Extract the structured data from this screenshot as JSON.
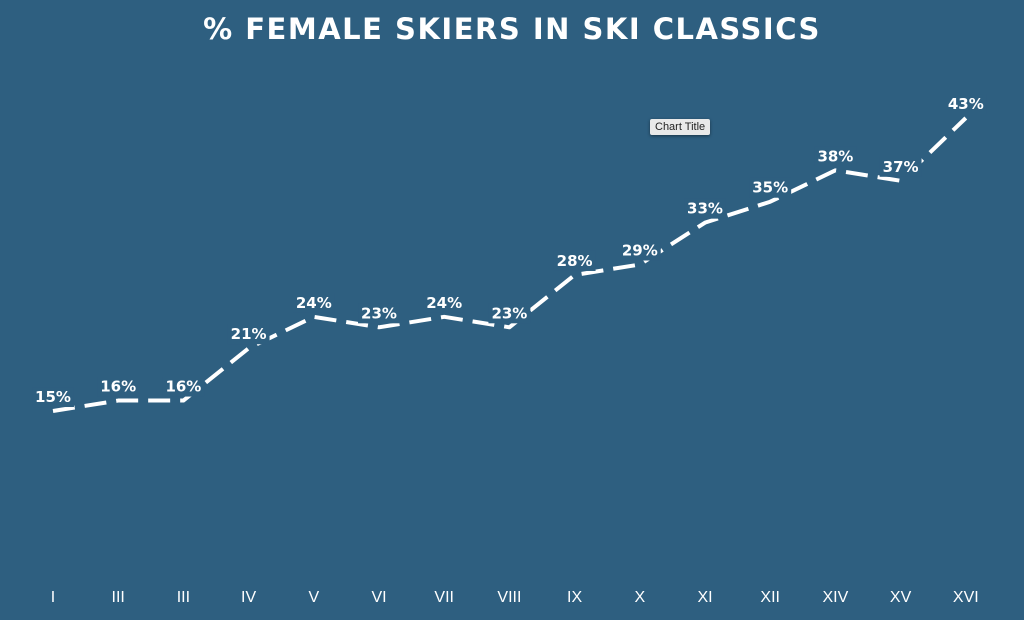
{
  "tooltip": {
    "text": "Chart Title"
  },
  "colors": {
    "background": "#2e5f80",
    "line": "#ffffff",
    "text": "#ffffff"
  },
  "chart_data": {
    "type": "line",
    "title": "% FEMALE SKIERS IN SKI CLASSICS",
    "categories": [
      "I",
      "III",
      "III",
      "IV",
      "V",
      "VI",
      "VII",
      "VIII",
      "IX",
      "X",
      "XI",
      "XII",
      "XIV",
      "XV",
      "XVI"
    ],
    "values": [
      15,
      16,
      16,
      21,
      24,
      23,
      24,
      23,
      28,
      29,
      33,
      35,
      38,
      37,
      43
    ],
    "data_labels": [
      "15%",
      "16%",
      "16%",
      "21%",
      "24%",
      "23%",
      "24%",
      "23%",
      "28%",
      "29%",
      "33%",
      "35%",
      "38%",
      "37%",
      "43%"
    ],
    "unit": "%",
    "ylim": [
      0,
      45
    ],
    "grid": false,
    "legend": "none",
    "line_style": "dashed",
    "drop_lines": true
  }
}
